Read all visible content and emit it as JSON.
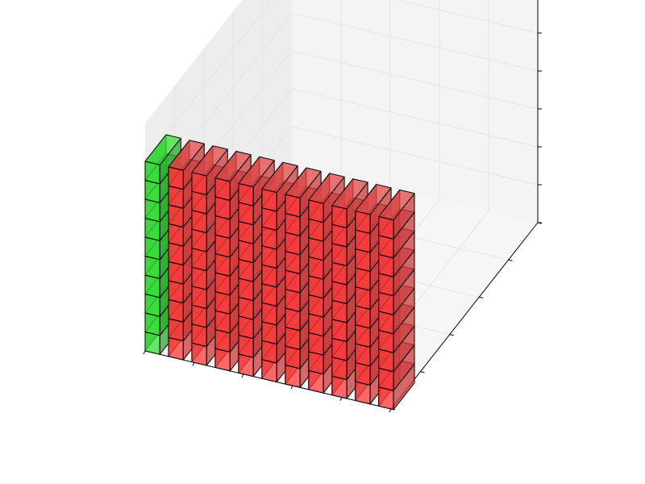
{
  "chart_data": {
    "type": "voxels",
    "title": "",
    "xlabel": "",
    "ylabel": "",
    "zlabel": "",
    "grid": true,
    "tick_labels_shown": false,
    "grid_size": {
      "x": 10,
      "y": 2,
      "z": 10
    },
    "series": [
      {
        "name": "",
        "color": "#ff3030",
        "alpha": 0.75,
        "x_indices": [
          1,
          2,
          3,
          4,
          5,
          6,
          7,
          8,
          9,
          10
        ],
        "y_range": [
          0,
          1
        ],
        "z_range": [
          0,
          10
        ]
      },
      {
        "name": "",
        "color": "#33dd33",
        "alpha": 0.75,
        "x_indices": [
          0
        ],
        "y_range": [
          0,
          1
        ],
        "z_range": [
          0,
          10
        ],
        "wall": true
      }
    ]
  },
  "colors": {
    "red_face": "#ff3a3a",
    "red_side": "#c93a3a",
    "red_top": "#e04848",
    "green_face": "#35e035",
    "green_side": "#2aa82a",
    "pane": "#f2f2f2",
    "grid": "#e6e6e6"
  }
}
